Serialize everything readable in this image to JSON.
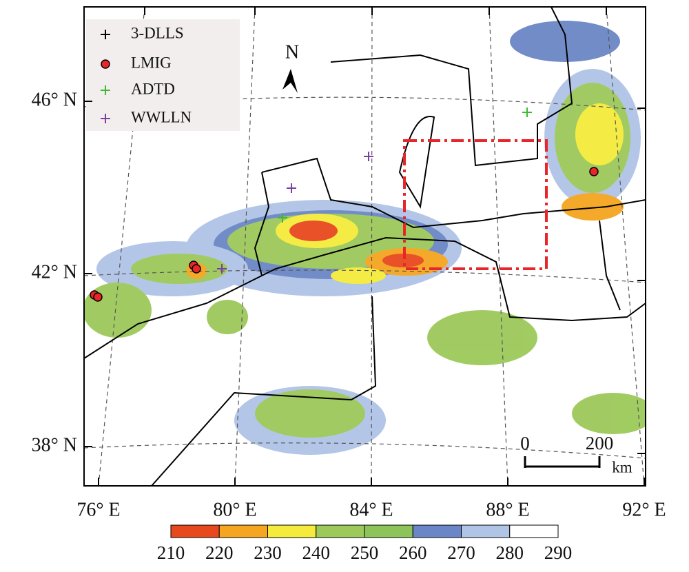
{
  "map": {
    "north_label": "N",
    "lat_ticks": [
      "46° N",
      "42° N",
      "38° N"
    ],
    "lon_ticks": [
      "76° E",
      "80° E",
      "84° E",
      "88° E",
      "92° E"
    ],
    "legend": [
      {
        "name": "3-DLLS",
        "color": "#000000"
      },
      {
        "name": "LMIG",
        "color": "#e8262a"
      },
      {
        "name": "ADTD",
        "color": "#3dbb2e"
      },
      {
        "name": "WWLLN",
        "color": "#7b3fa0"
      }
    ],
    "colorbar": {
      "ticks": [
        210,
        220,
        230,
        240,
        250,
        260,
        270,
        280,
        290
      ],
      "colors": [
        "#e8481e",
        "#f5a51f",
        "#f4eb3c",
        "#9cc95a",
        "#8cc45a",
        "#6b86c6",
        "#b0c4e6",
        "#ffffff"
      ]
    },
    "scale_bar": {
      "ticks": [
        0,
        200
      ],
      "unit": "km"
    }
  }
}
